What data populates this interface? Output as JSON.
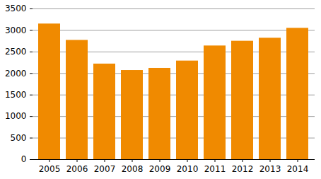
{
  "chart_data": {
    "type": "bar",
    "categories": [
      "2005",
      "2006",
      "2007",
      "2008",
      "2009",
      "2010",
      "2011",
      "2012",
      "2013",
      "2014"
    ],
    "values": [
      3150,
      2770,
      2220,
      2070,
      2120,
      2290,
      2640,
      2750,
      2820,
      3050
    ],
    "color": "#f08a00",
    "ylim": [
      0,
      3500
    ],
    "yticks": [
      0,
      500,
      1000,
      1500,
      2000,
      2500,
      3000,
      3500
    ],
    "grid": true
  }
}
